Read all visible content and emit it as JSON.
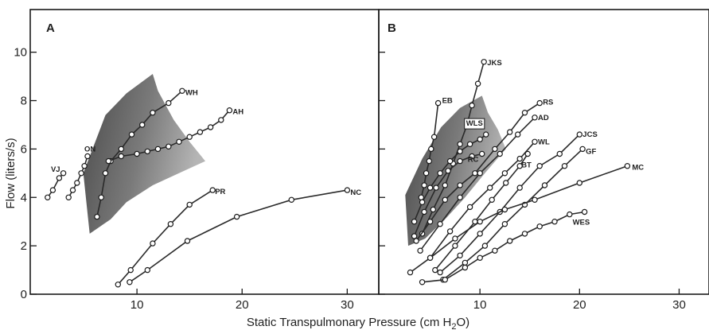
{
  "chart_data": [
    {
      "type": "line",
      "panel_label": "A",
      "xlim": [
        0,
        33
      ],
      "ylim": [
        0,
        11.5
      ],
      "x_ticks": [
        10,
        20,
        30
      ],
      "y_ticks": [
        0,
        2,
        4,
        6,
        8,
        10
      ],
      "ylabel": "Flow (liters/s)",
      "shaded_region": {
        "color": "#6e6e6e",
        "top": [
          [
            4.9,
            5.0
          ],
          [
            7.0,
            7.4
          ],
          [
            9.0,
            8.3
          ],
          [
            11.5,
            9.1
          ]
        ],
        "right": [
          [
            11.5,
            9.1
          ],
          [
            12.0,
            8.4
          ],
          [
            13.5,
            7.2
          ],
          [
            15.0,
            6.3
          ],
          [
            16.5,
            5.5
          ]
        ],
        "bottom": [
          [
            16.5,
            5.5
          ],
          [
            14.0,
            5.0
          ],
          [
            11.5,
            4.5
          ],
          [
            9.0,
            3.8
          ],
          [
            7.5,
            3.1
          ],
          [
            5.5,
            2.5
          ]
        ],
        "left": [
          [
            5.5,
            2.5
          ],
          [
            4.9,
            5.0
          ]
        ]
      },
      "series": [
        {
          "name": "WH",
          "points": [
            [
              6.2,
              3.2
            ],
            [
              6.6,
              4.0
            ],
            [
              7.0,
              5.0
            ],
            [
              7.5,
              5.5
            ],
            [
              8.5,
              6.0
            ],
            [
              9.5,
              6.6
            ],
            [
              10.5,
              7.0
            ],
            [
              11.5,
              7.5
            ],
            [
              13.0,
              7.9
            ],
            [
              14.3,
              8.4
            ]
          ]
        },
        {
          "name": "AH",
          "points": [
            [
              7.3,
              5.5
            ],
            [
              8.5,
              5.7
            ],
            [
              10.0,
              5.8
            ],
            [
              11.0,
              5.9
            ],
            [
              12.0,
              6.0
            ],
            [
              13.0,
              6.1
            ],
            [
              14.0,
              6.3
            ],
            [
              15.0,
              6.5
            ],
            [
              16.0,
              6.7
            ],
            [
              17.0,
              6.9
            ],
            [
              18.0,
              7.2
            ],
            [
              18.8,
              7.6
            ]
          ]
        },
        {
          "name": "VJ",
          "points": [
            [
              1.5,
              4.0
            ],
            [
              2.0,
              4.3
            ],
            [
              2.6,
              4.8
            ],
            [
              3.0,
              5.0
            ]
          ]
        },
        {
          "name": "ON",
          "points": [
            [
              3.5,
              4.0
            ],
            [
              3.9,
              4.3
            ],
            [
              4.3,
              4.6
            ],
            [
              4.7,
              5.0
            ],
            [
              5.0,
              5.3
            ],
            [
              5.3,
              5.7
            ]
          ]
        },
        {
          "name": "PR",
          "points": [
            [
              8.2,
              0.4
            ],
            [
              9.4,
              1.0
            ],
            [
              11.5,
              2.1
            ],
            [
              13.2,
              2.9
            ],
            [
              15.0,
              3.7
            ],
            [
              17.2,
              4.3
            ]
          ]
        },
        {
          "name": "NC",
          "points": [
            [
              9.3,
              0.5
            ],
            [
              11.0,
              1.0
            ],
            [
              14.8,
              2.2
            ],
            [
              19.5,
              3.2
            ],
            [
              24.7,
              3.9
            ],
            [
              30.0,
              4.3
            ]
          ]
        }
      ]
    },
    {
      "type": "line",
      "panel_label": "B",
      "xlim": [
        0,
        33
      ],
      "ylim": [
        0,
        11.5
      ],
      "x_ticks": [
        10,
        20,
        30
      ],
      "y_ticks": [
        0,
        2,
        4,
        6,
        8,
        10
      ],
      "xlabel": "Static Transpulmonary Pressure (cm H2O)",
      "xlabel_main": "Static Transpulmonary Pressure (cm H",
      "xlabel_subscript": "2",
      "xlabel_end": "O)",
      "shaded_region": {
        "color": "#6e6e6e",
        "top": [
          [
            2.5,
            4.1
          ],
          [
            4.2,
            5.6
          ],
          [
            6.1,
            6.9
          ],
          [
            8.0,
            7.7
          ],
          [
            10.2,
            8.2
          ]
        ],
        "right": [
          [
            10.2,
            8.2
          ],
          [
            10.8,
            7.5
          ],
          [
            11.8,
            6.8
          ],
          [
            12.6,
            6.0
          ]
        ],
        "bottom": [
          [
            12.6,
            6.0
          ],
          [
            10.5,
            5.0
          ],
          [
            8.5,
            4.0
          ],
          [
            6.5,
            3.1
          ],
          [
            4.5,
            2.3
          ],
          [
            2.8,
            2.0
          ]
        ],
        "left": [
          [
            2.8,
            2.0
          ],
          [
            2.5,
            4.1
          ]
        ]
      },
      "series": [
        {
          "name": "JKS",
          "points": [
            [
              4.2,
              2.5
            ],
            [
              5.3,
              3.5
            ],
            [
              6.5,
              4.5
            ],
            [
              7.3,
              5.4
            ],
            [
              8.0,
              6.2
            ],
            [
              8.7,
              7.0
            ],
            [
              9.2,
              7.8
            ],
            [
              9.8,
              8.7
            ],
            [
              10.4,
              9.6
            ]
          ]
        },
        {
          "name": "EB",
          "points": [
            [
              4.1,
              4.0
            ],
            [
              4.4,
              4.5
            ],
            [
              4.6,
              5.0
            ],
            [
              4.9,
              5.5
            ],
            [
              5.1,
              6.0
            ],
            [
              5.4,
              6.5
            ],
            [
              5.8,
              7.9
            ]
          ]
        },
        {
          "name": "WLS",
          "points": [
            [
              3.4,
              3.0
            ],
            [
              4.2,
              3.8
            ],
            [
              5.0,
              4.4
            ],
            [
              6.0,
              5.0
            ],
            [
              7.0,
              5.5
            ],
            [
              8.0,
              5.9
            ],
            [
              9.0,
              6.2
            ],
            [
              10.0,
              6.4
            ],
            [
              10.6,
              6.6
            ]
          ]
        },
        {
          "name": "RC",
          "points": [
            [
              3.4,
              2.4
            ],
            [
              4.4,
              3.4
            ],
            [
              5.6,
              4.4
            ],
            [
              6.8,
              5.1
            ],
            [
              8.0,
              5.5
            ],
            [
              9.2,
              5.7
            ],
            [
              10.2,
              5.8
            ]
          ]
        },
        {
          "name": "RS",
          "points": [
            [
              3.6,
              2.2
            ],
            [
              5.0,
              3.0
            ],
            [
              6.5,
              3.9
            ],
            [
              8.0,
              4.5
            ],
            [
              9.5,
              5.0
            ],
            [
              11.5,
              6.0
            ],
            [
              13.0,
              6.7
            ],
            [
              14.5,
              7.5
            ],
            [
              16.0,
              7.9
            ]
          ]
        },
        {
          "name": "AD",
          "points": [
            [
              4.0,
              1.8
            ],
            [
              6.0,
              2.9
            ],
            [
              8.0,
              4.0
            ],
            [
              10.0,
              5.0
            ],
            [
              12.0,
              5.8
            ],
            [
              13.8,
              6.6
            ],
            [
              15.5,
              7.3
            ]
          ]
        },
        {
          "name": "WL",
          "points": [
            [
              5.0,
              1.5
            ],
            [
              7.0,
              2.6
            ],
            [
              9.0,
              3.6
            ],
            [
              11.0,
              4.4
            ],
            [
              12.5,
              5.0
            ],
            [
              14.0,
              5.6
            ],
            [
              15.5,
              6.3
            ]
          ]
        },
        {
          "name": "BT",
          "points": [
            [
              5.5,
              1.0
            ],
            [
              7.5,
              2.0
            ],
            [
              9.5,
              3.0
            ],
            [
              11.2,
              3.9
            ],
            [
              12.6,
              4.6
            ],
            [
              14.0,
              5.3
            ],
            [
              14.8,
              5.8
            ]
          ]
        },
        {
          "name": "JCS",
          "points": [
            [
              6.0,
              0.9
            ],
            [
              8.0,
              1.6
            ],
            [
              10.0,
              2.5
            ],
            [
              12.0,
              3.4
            ],
            [
              14.0,
              4.4
            ],
            [
              16.0,
              5.3
            ],
            [
              18.0,
              5.8
            ],
            [
              20.0,
              6.6
            ]
          ]
        },
        {
          "name": "GF",
          "points": [
            [
              6.3,
              0.6
            ],
            [
              8.5,
              1.3
            ],
            [
              10.5,
              2.0
            ],
            [
              12.5,
              2.9
            ],
            [
              14.5,
              3.7
            ],
            [
              16.5,
              4.5
            ],
            [
              18.5,
              5.3
            ],
            [
              20.3,
              6.0
            ]
          ]
        },
        {
          "name": "MC",
          "points": [
            [
              3.0,
              0.9
            ],
            [
              5.0,
              1.5
            ],
            [
              7.5,
              2.3
            ],
            [
              10.0,
              3.0
            ],
            [
              12.5,
              3.5
            ],
            [
              15.5,
              3.9
            ],
            [
              20.0,
              4.6
            ],
            [
              24.8,
              5.3
            ]
          ]
        },
        {
          "name": "WES",
          "points": [
            [
              4.2,
              0.5
            ],
            [
              6.5,
              0.6
            ],
            [
              8.5,
              1.1
            ],
            [
              10.0,
              1.5
            ],
            [
              11.5,
              1.8
            ],
            [
              13.0,
              2.2
            ],
            [
              14.5,
              2.5
            ],
            [
              16.0,
              2.8
            ],
            [
              17.5,
              3.0
            ],
            [
              19.0,
              3.3
            ],
            [
              20.5,
              3.4
            ]
          ]
        }
      ]
    }
  ]
}
